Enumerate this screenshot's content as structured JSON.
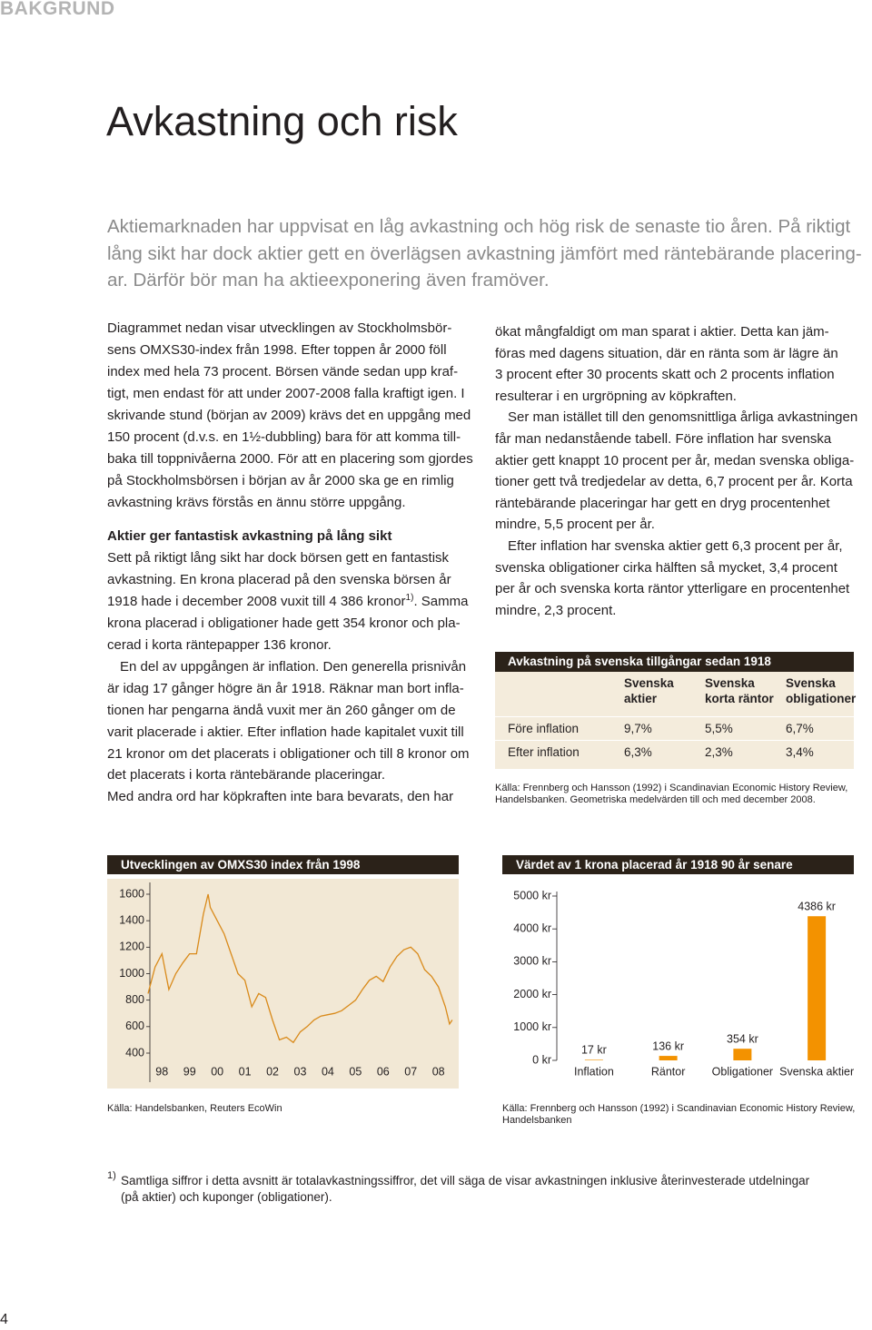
{
  "header": {
    "section": "BAKGRUND",
    "title": "Avkastning och risk",
    "intro": [
      "Aktiemarknaden har uppvisat en låg avkastning och hög risk de senaste tio åren. På riktigt",
      "lång sikt har dock aktier gett en överlägsen avkastning jämfört med räntebärande placering-",
      "ar. Därför bör man ha aktieexponering även framöver."
    ]
  },
  "left_column": {
    "paragraph_1": [
      "Diagrammet nedan visar utvecklingen av Stockholmsbör-",
      "sens OMXS30-index från 1998. Efter toppen år 2000 föll",
      "index med hela 73 procent. Börsen vände sedan upp kraf-",
      "tigt, men endast för att under 2007-2008 falla kraftigt igen. I",
      "skrivande stund (början av 2009) krävs det en uppgång med",
      "150 procent (d.v.s. en 1½-dubbling) bara för att komma till-",
      "baka till toppnivåerna 2000. För att en placering som gjordes",
      "på Stockholmsbörsen i början av år 2000 ska ge en rimlig",
      "avkastning krävs förstås en ännu större uppgång."
    ],
    "heading": "Aktier ger fantastisk avkastning på lång sikt",
    "paragraph_2": [
      "Sett på riktigt lång sikt har dock börsen gett en fantastisk",
      "avkastning. En krona placerad på den svenska börsen år",
      {
        "text": "1918 hade i december 2008 vuxit till 4 386 kronor",
        "sup": "1)",
        "tail": ". Samma"
      },
      "krona placerad i obligationer hade gett 354 kronor och pla-",
      "cerad i korta räntepapper 136 kronor."
    ],
    "paragraph_3": [
      "En del av uppgången är inflation. Den generella prisnivån",
      "är idag 17 gånger högre än år 1918. Räknar man bort infla-",
      "tionen har pengarna ändå vuxit mer än 260 gånger om de",
      "varit placerade i aktier. Efter inflation hade kapitalet vuxit till",
      "21 kronor om det placerats i obligationer och till 8 kronor om",
      "det placerats i korta räntebärande placeringar.",
      "Med andra ord har köpkraften inte bara bevarats, den har"
    ]
  },
  "right_column": {
    "paragraph_1": [
      "ökat mångfaldigt om man sparat i aktier. Detta kan jäm-",
      "föras med dagens situation, där en ränta som är lägre än",
      "3 procent efter 30 procents skatt och 2 procents inflation",
      "resulterar i en urgröpning av köpkraften."
    ],
    "paragraph_2": [
      "Ser man istället till den genomsnittliga årliga avkastningen",
      "får man nedanstående tabell. Före inflation har svenska",
      "aktier gett knappt 10 procent per år, medan svenska obliga-",
      "tioner gett två tredjedelar av detta, 6,7 procent per år. Korta",
      "räntebärande placeringar har gett en dryg procentenhet",
      "mindre, 5,5 procent per år."
    ],
    "paragraph_3": [
      "Efter inflation har svenska aktier gett 6,3 procent per år,",
      "svenska obligationer cirka hälften så mycket, 3,4 procent",
      "per år och svenska korta räntor ytterligare en procentenhet",
      "mindre, 2,3 procent."
    ]
  },
  "table": {
    "title": "Avkastning på svenska tillgångar sedan 1918",
    "columns": [
      [
        "Svenska",
        "aktier"
      ],
      [
        "Svenska",
        "korta räntor"
      ],
      [
        "Svenska",
        "obligationer"
      ]
    ],
    "rows": [
      {
        "label": "Före inflation",
        "cells": [
          "9,7%",
          "5,5%",
          "6,7%"
        ]
      },
      {
        "label": "Efter inflation",
        "cells": [
          "6,3%",
          "2,3%",
          "3,4%"
        ]
      }
    ],
    "source": [
      "Källa: Frennberg och Hansson (1992) i Scandinavian Economic History Review,",
      "Handelsbanken. Geometriska medelvärden till och med december 2008."
    ]
  },
  "chart_data": [
    {
      "type": "line",
      "title": "Utvecklingen av OMXS30 index från 1998",
      "color": "#d98a1a",
      "background": "#f2e8d5",
      "x": [
        1998.0,
        1998.25,
        1998.5,
        1998.75,
        1999.0,
        1999.25,
        1999.5,
        1999.75,
        2000.0,
        2000.17,
        2000.25,
        2000.5,
        2000.75,
        2001.0,
        2001.25,
        2001.5,
        2001.75,
        2002.0,
        2002.25,
        2002.5,
        2002.75,
        2003.0,
        2003.25,
        2003.5,
        2003.75,
        2004.0,
        2004.25,
        2004.5,
        2004.75,
        2005.0,
        2005.25,
        2005.5,
        2005.75,
        2006.0,
        2006.25,
        2006.5,
        2006.75,
        2007.0,
        2007.25,
        2007.5,
        2007.75,
        2008.0,
        2008.25,
        2008.5,
        2008.75,
        2008.9,
        2009.0
      ],
      "values": [
        850,
        1050,
        1150,
        880,
        1000,
        1080,
        1150,
        1150,
        1450,
        1600,
        1500,
        1400,
        1300,
        1150,
        1000,
        950,
        750,
        850,
        820,
        650,
        500,
        520,
        480,
        560,
        600,
        650,
        680,
        690,
        700,
        720,
        760,
        800,
        880,
        950,
        980,
        940,
        1050,
        1130,
        1180,
        1200,
        1150,
        1030,
        980,
        900,
        750,
        620,
        650
      ],
      "xlim": [
        1997.9,
        2009.2
      ],
      "xticks": [
        {
          "value": 1998.5,
          "label": "98"
        },
        {
          "value": 1999.5,
          "label": "99"
        },
        {
          "value": 2000.5,
          "label": "00"
        },
        {
          "value": 2001.5,
          "label": "01"
        },
        {
          "value": 2002.5,
          "label": "02"
        },
        {
          "value": 2003.5,
          "label": "03"
        },
        {
          "value": 2004.5,
          "label": "04"
        },
        {
          "value": 2005.5,
          "label": "05"
        },
        {
          "value": 2006.5,
          "label": "06"
        },
        {
          "value": 2007.5,
          "label": "07"
        },
        {
          "value": 2008.5,
          "label": "08"
        }
      ],
      "ylim": [
        160,
        1700
      ],
      "yticks": [
        400,
        600,
        800,
        1000,
        1200,
        1400,
        1600
      ],
      "source": [
        "Källa: Handelsbanken, Reuters EcoWin"
      ]
    },
    {
      "type": "bar",
      "title": "Värdet av 1 krona placerad år 1918 90 år senare",
      "color": "#f39200",
      "categories": [
        "Inflation",
        "Räntor",
        "Obligationer",
        "Svenska aktier"
      ],
      "values": [
        17,
        136,
        354,
        4386
      ],
      "value_labels": [
        "17 kr",
        "136 kr",
        "354 kr",
        "4386 kr"
      ],
      "ylim": [
        0,
        5000
      ],
      "yticks": [
        {
          "value": 0,
          "label": "0 kr"
        },
        {
          "value": 1000,
          "label": "1000 kr"
        },
        {
          "value": 2000,
          "label": "2000 kr"
        },
        {
          "value": 3000,
          "label": "3000 kr"
        },
        {
          "value": 4000,
          "label": "4000 kr"
        },
        {
          "value": 5000,
          "label": "5000 kr"
        }
      ],
      "source": [
        "Källa:  Frennberg och Hansson (1992) i Scandinavian Economic History Review,",
        "Handelsbanken"
      ]
    }
  ],
  "footnote": {
    "marker": "1)",
    "lines": [
      "Samtliga siffror i detta avsnitt är totalavkastningssiffror, det vill säga de visar avkastningen inklusive återinvesterade utdelningar",
      "(på aktier) och kuponger (obligationer)."
    ]
  },
  "page_number": "4"
}
